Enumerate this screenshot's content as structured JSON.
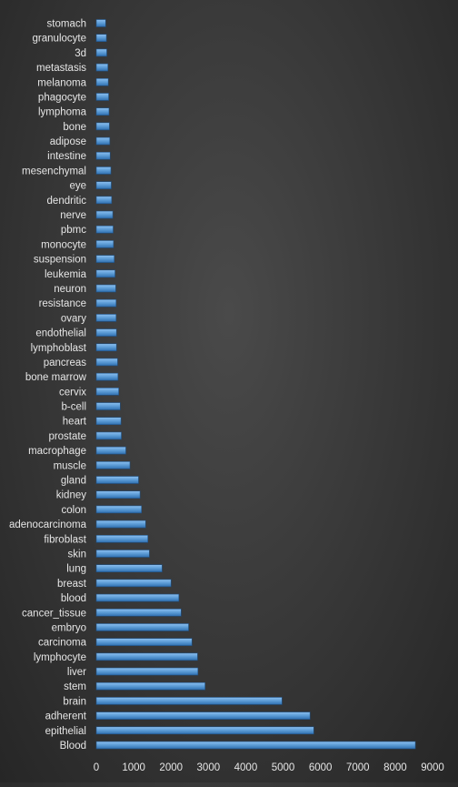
{
  "chart_data": {
    "type": "bar",
    "orientation": "horizontal",
    "title": "",
    "xlabel": "",
    "ylabel": "",
    "xlim": [
      0,
      9000
    ],
    "xticks": [
      0,
      1000,
      2000,
      3000,
      4000,
      5000,
      6000,
      7000,
      8000,
      9000
    ],
    "grid": false,
    "legend": "none",
    "bar_color": "#5b9bd5",
    "categories": [
      "stomach",
      "granulocyte",
      "3d",
      "metastasis",
      "melanoma",
      "phagocyte",
      "lymphoma",
      "bone",
      "adipose",
      "intestine",
      "mesenchymal",
      "eye",
      "dendritic",
      "nerve",
      "pbmc",
      "monocyte",
      "suspension",
      "leukemia",
      "neuron",
      "resistance",
      "ovary",
      "endothelial",
      "lymphoblast",
      "pancreas",
      "bone marrow",
      "cervix",
      "b-cell",
      "heart",
      "prostate",
      "macrophage",
      "muscle",
      "gland",
      "kidney",
      "colon",
      "adenocarcinoma",
      "fibroblast",
      "skin",
      "lung",
      "breast",
      "blood",
      "cancer_tissue",
      "embryo",
      "carcinoma",
      "lymphocyte",
      "liver",
      "stem",
      "brain",
      "adherent",
      "epithelial",
      "Blood"
    ],
    "values": [
      250,
      270,
      280,
      310,
      320,
      330,
      340,
      350,
      360,
      370,
      390,
      400,
      410,
      440,
      450,
      460,
      480,
      500,
      520,
      530,
      530,
      540,
      540,
      570,
      580,
      600,
      640,
      660,
      670,
      790,
      900,
      1130,
      1170,
      1210,
      1320,
      1380,
      1420,
      1760,
      2000,
      2210,
      2270,
      2470,
      2560,
      2710,
      2720,
      2910,
      4970,
      5720,
      5820,
      8540
    ]
  }
}
